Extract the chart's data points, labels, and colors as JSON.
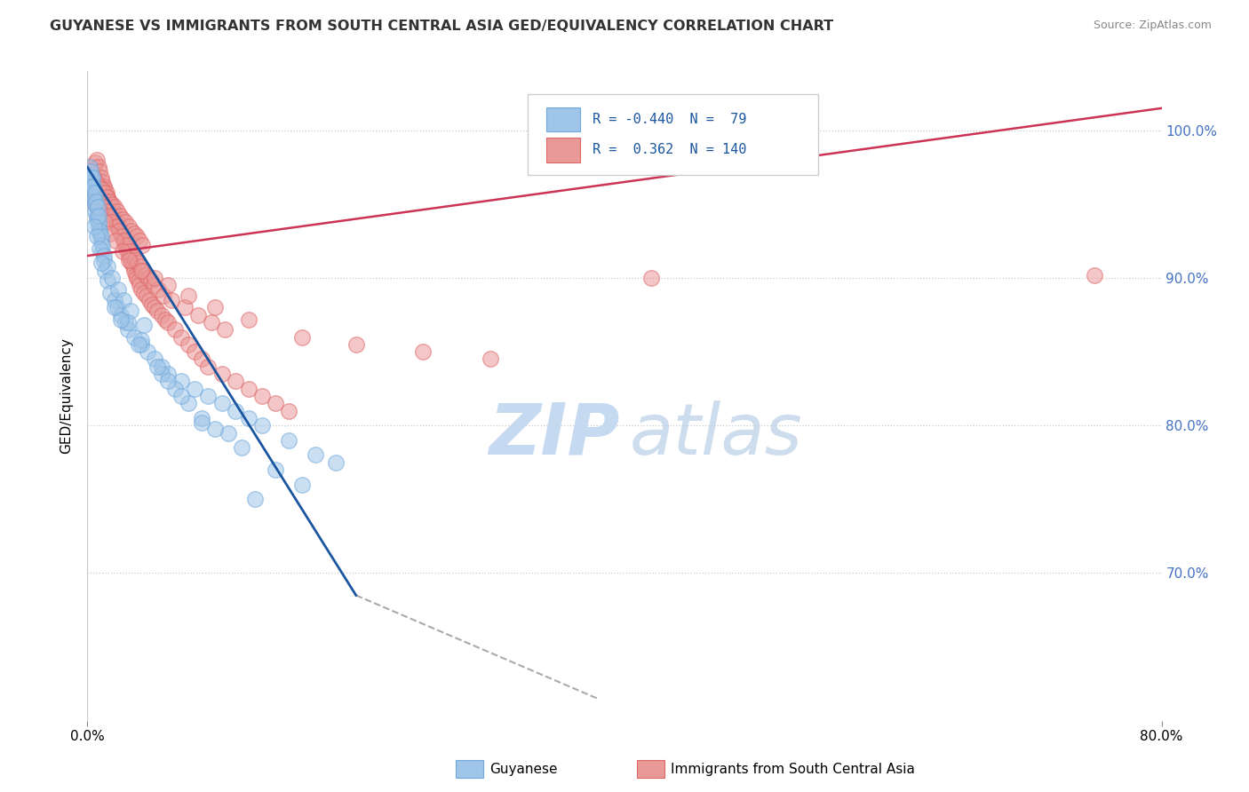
{
  "title": "GUYANESE VS IMMIGRANTS FROM SOUTH CENTRAL ASIA GED/EQUIVALENCY CORRELATION CHART",
  "source": "Source: ZipAtlas.com",
  "ylabel": "GED/Equivalency",
  "right_ytick_vals": [
    70.0,
    80.0,
    90.0,
    100.0
  ],
  "xmin": 0.0,
  "xmax": 80.0,
  "ymin": 60.0,
  "ymax": 104.0,
  "blue_color": "#9fc5e8",
  "blue_edge_color": "#6fa8dc",
  "pink_color": "#ea9999",
  "pink_edge_color": "#e06666",
  "blue_line_color": "#1a56a0",
  "pink_line_color": "#cc3355",
  "dashed_color": "#aaaaaa",
  "blue_line": [
    [
      0.0,
      97.5
    ],
    [
      20.0,
      68.5
    ]
  ],
  "dashed_line": [
    [
      20.0,
      68.5
    ],
    [
      38.0,
      61.5
    ]
  ],
  "pink_line": [
    [
      0.0,
      91.5
    ],
    [
      80.0,
      101.5
    ]
  ],
  "blue_scatter_x": [
    0.3,
    0.4,
    0.5,
    0.6,
    0.7,
    0.8,
    0.9,
    1.0,
    1.1,
    1.2,
    0.2,
    0.3,
    0.4,
    0.5,
    0.6,
    0.7,
    0.8,
    0.9,
    1.0,
    1.1,
    0.15,
    0.25,
    0.35,
    0.45,
    0.55,
    0.65,
    0.75,
    0.85,
    1.3,
    1.5,
    1.7,
    2.0,
    2.2,
    2.5,
    2.8,
    3.0,
    3.5,
    4.0,
    4.5,
    5.0,
    5.5,
    6.0,
    7.0,
    8.0,
    9.0,
    10.0,
    11.0,
    12.0,
    13.0,
    15.0,
    17.0,
    18.5,
    0.5,
    0.7,
    0.9,
    1.2,
    1.5,
    1.8,
    2.3,
    2.7,
    3.2,
    4.2,
    5.5,
    6.5,
    8.5,
    10.5,
    14.0,
    16.0,
    2.0,
    3.0,
    4.0,
    6.0,
    7.5,
    9.5,
    11.5,
    1.0,
    2.5,
    3.8,
    5.2,
    7.0,
    8.5,
    12.5
  ],
  "blue_scatter_y": [
    96.5,
    95.8,
    95.2,
    94.5,
    94.0,
    93.5,
    93.0,
    92.5,
    91.8,
    91.2,
    97.0,
    96.8,
    96.2,
    95.5,
    95.0,
    94.2,
    93.8,
    93.2,
    92.8,
    92.2,
    97.5,
    97.2,
    96.8,
    96.2,
    95.8,
    95.2,
    94.8,
    94.2,
    90.5,
    89.8,
    89.0,
    88.5,
    88.0,
    87.5,
    87.0,
    86.5,
    86.0,
    85.5,
    85.0,
    84.5,
    84.0,
    83.5,
    83.0,
    82.5,
    82.0,
    81.5,
    81.0,
    80.5,
    80.0,
    79.0,
    78.0,
    77.5,
    93.5,
    92.8,
    92.0,
    91.5,
    90.8,
    90.0,
    89.2,
    88.5,
    87.8,
    86.8,
    83.5,
    82.5,
    80.5,
    79.5,
    77.0,
    76.0,
    88.0,
    87.0,
    85.8,
    83.0,
    81.5,
    79.8,
    78.5,
    91.0,
    87.2,
    85.5,
    84.0,
    82.0,
    80.2,
    75.0
  ],
  "pink_scatter_x": [
    0.2,
    0.3,
    0.4,
    0.5,
    0.6,
    0.7,
    0.8,
    0.9,
    1.0,
    1.1,
    1.2,
    1.3,
    1.4,
    1.5,
    1.6,
    1.7,
    1.8,
    1.9,
    2.0,
    2.1,
    2.2,
    2.3,
    2.4,
    2.5,
    2.6,
    2.7,
    2.8,
    2.9,
    3.0,
    3.1,
    3.2,
    3.3,
    3.4,
    3.5,
    3.6,
    3.7,
    3.8,
    3.9,
    4.0,
    4.2,
    4.4,
    4.6,
    4.8,
    5.0,
    5.2,
    5.5,
    5.8,
    6.0,
    6.5,
    7.0,
    7.5,
    8.0,
    8.5,
    9.0,
    10.0,
    11.0,
    12.0,
    13.0,
    14.0,
    15.0,
    0.25,
    0.45,
    0.65,
    0.85,
    1.05,
    1.25,
    1.45,
    1.65,
    1.85,
    2.05,
    2.25,
    2.45,
    2.65,
    2.85,
    3.05,
    3.25,
    3.45,
    3.65,
    3.85,
    4.05,
    0.35,
    0.55,
    0.75,
    0.95,
    1.15,
    1.35,
    1.55,
    1.75,
    2.15,
    2.35,
    2.55,
    2.75,
    2.95,
    3.15,
    3.35,
    3.55,
    3.75,
    3.95,
    4.15,
    4.35,
    4.55,
    4.75,
    4.95,
    5.25,
    5.65,
    6.25,
    7.25,
    8.25,
    9.25,
    10.25,
    0.4,
    0.6,
    0.9,
    1.3,
    1.7,
    2.1,
    2.6,
    3.1,
    4.0,
    5.0,
    6.0,
    7.5,
    9.5,
    12.0,
    16.0,
    20.0,
    25.0,
    30.0,
    42.0,
    75.0
  ],
  "pink_scatter_y": [
    96.0,
    96.5,
    97.0,
    97.5,
    97.8,
    98.0,
    97.5,
    97.2,
    96.8,
    96.5,
    96.2,
    96.0,
    95.8,
    95.5,
    95.2,
    95.0,
    94.8,
    94.5,
    94.2,
    94.0,
    93.8,
    93.5,
    93.2,
    93.0,
    92.8,
    92.5,
    92.2,
    92.0,
    91.8,
    91.5,
    91.2,
    91.0,
    90.8,
    90.5,
    90.2,
    90.0,
    89.8,
    89.5,
    89.2,
    89.0,
    88.8,
    88.5,
    88.2,
    88.0,
    87.8,
    87.5,
    87.2,
    87.0,
    86.5,
    86.0,
    85.5,
    85.0,
    84.5,
    84.0,
    83.5,
    83.0,
    82.5,
    82.0,
    81.5,
    81.0,
    97.0,
    96.8,
    96.5,
    96.2,
    96.0,
    95.8,
    95.5,
    95.2,
    95.0,
    94.8,
    94.5,
    94.2,
    94.0,
    93.8,
    93.5,
    93.2,
    93.0,
    92.8,
    92.5,
    92.2,
    96.2,
    95.8,
    95.5,
    95.2,
    94.8,
    94.5,
    94.2,
    93.8,
    93.5,
    93.2,
    92.8,
    92.5,
    92.2,
    91.8,
    91.5,
    91.2,
    91.0,
    90.8,
    90.5,
    90.2,
    90.0,
    89.8,
    89.5,
    89.2,
    88.8,
    88.5,
    88.0,
    87.5,
    87.0,
    86.5,
    95.5,
    95.0,
    94.5,
    93.8,
    93.0,
    92.5,
    91.8,
    91.2,
    90.5,
    90.0,
    89.5,
    88.8,
    88.0,
    87.2,
    86.0,
    85.5,
    85.0,
    84.5,
    90.0,
    90.2
  ]
}
